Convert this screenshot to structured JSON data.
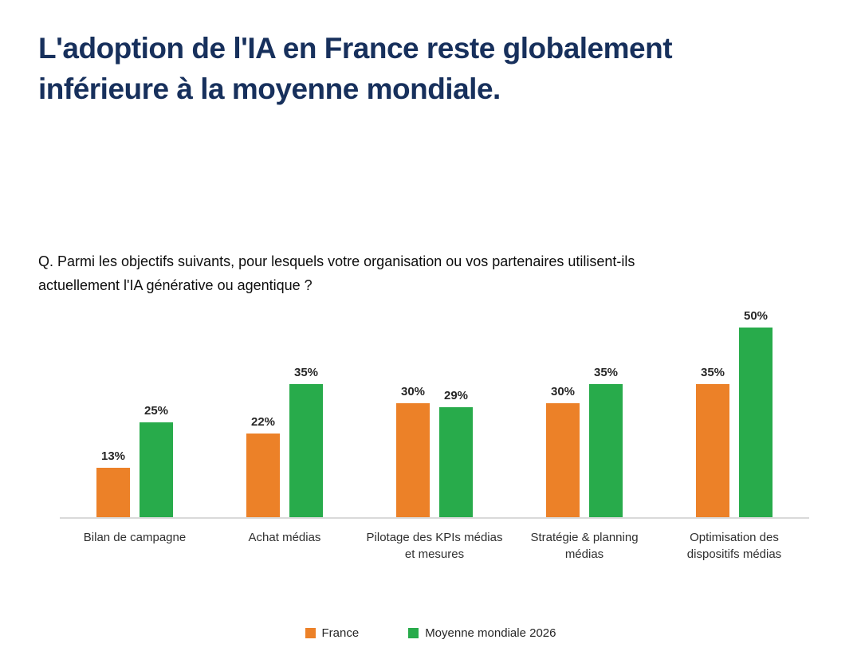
{
  "header": {
    "title_line1": "L'adoption de l'IA en France reste globalement",
    "title_line2": "inférieure à la moyenne mondiale.",
    "title_color": "#17305C"
  },
  "question": {
    "line1": "Q. Parmi les objectifs suivants, pour lesquels votre organisation ou vos partenaires utilisent-ils",
    "line2": "actuellement l'IA générative ou agentique ?"
  },
  "chart_data": {
    "type": "bar",
    "title": "",
    "categories": [
      "Bilan de campagne",
      "Achat médias",
      "Pilotage des KPIs médias et mesures",
      "Stratégie & planning médias",
      "Optimisation des dispositifs médias"
    ],
    "series": [
      {
        "name": "France",
        "color": "#EC8128",
        "values": [
          13,
          22,
          30,
          30,
          35
        ]
      },
      {
        "name": "Moyenne mondiale 2026",
        "color": "#28AB4B",
        "values": [
          25,
          35,
          29,
          35,
          50
        ]
      }
    ],
    "value_suffix": "%",
    "data_labels": [
      [
        "13%",
        "22%",
        "30%",
        "30%",
        "35%"
      ],
      [
        "25%",
        "35%",
        "29%",
        "35%",
        "50%"
      ]
    ],
    "ylim": [
      0,
      56
    ],
    "grid": false,
    "axis_line_color": "#D9D9D9",
    "legend_position": "bottom"
  }
}
